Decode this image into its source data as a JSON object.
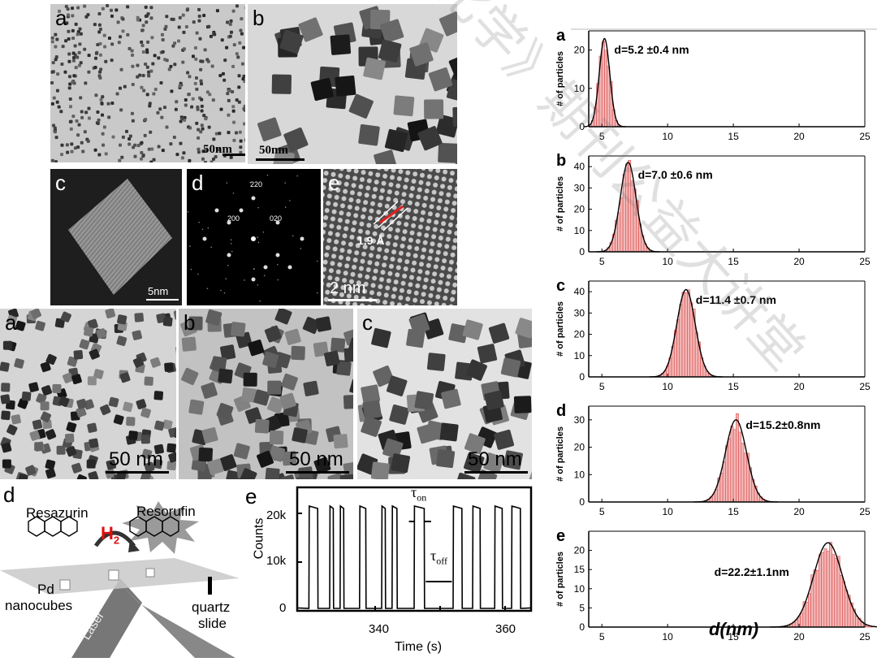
{
  "tem_panels": {
    "a": {
      "label": "a",
      "scale": "50nm"
    },
    "b": {
      "label": "b",
      "scale": "50nm"
    },
    "c": {
      "label": "c",
      "scale": "5nm"
    },
    "d": {
      "label": "d",
      "spots": [
        "220",
        "200",
        "020"
      ]
    },
    "e": {
      "label": "e",
      "spacing": "1.9 Å",
      "scale": "2 nm"
    }
  },
  "mid_panels": [
    {
      "label": "a",
      "scale": "50 nm"
    },
    {
      "label": "b",
      "scale": "50 nm"
    },
    {
      "label": "c",
      "scale": "50 nm"
    }
  ],
  "scheme": {
    "label": "d",
    "reactant": "Resazurin",
    "product": "Resorufin",
    "gas": "H",
    "gas_sub": "2",
    "catalyst": "Pd",
    "catalyst2": "nanocubes",
    "laser": "Laser",
    "substrate": "quartz",
    "substrate2": "slide"
  },
  "trace": {
    "label": "e",
    "ylabel": "Counts",
    "xlabel": "Time (s)",
    "yticks": [
      "20k",
      "10k",
      "0"
    ],
    "xticks": [
      "340",
      "360"
    ],
    "tau_on": "τ",
    "tau_on_sub": "on",
    "tau_off": "τ",
    "tau_off_sub": "off"
  },
  "histograms": {
    "xlabel": "d(nm)",
    "ylabel": "# of particles",
    "xticks": [
      "5",
      "10",
      "15",
      "20",
      "25"
    ],
    "panels": [
      {
        "label": "a",
        "text": "d=5.2 ±0.4 nm",
        "mean": 5.2,
        "sd": 0.4,
        "peak": 23,
        "yticks": [
          0,
          10,
          20
        ],
        "ymax": 25,
        "xstart": 4
      },
      {
        "label": "b",
        "text": "d=7.0 ±0.6 nm",
        "mean": 7.0,
        "sd": 0.6,
        "peak": 42,
        "yticks": [
          0,
          10,
          20,
          30,
          40
        ],
        "ymax": 45,
        "xstart": 4
      },
      {
        "label": "c",
        "text": "d=11.4 ±0.7 nm",
        "mean": 11.4,
        "sd": 0.7,
        "peak": 41,
        "yticks": [
          0,
          10,
          20,
          30,
          40
        ],
        "ymax": 45,
        "xstart": 3.5
      },
      {
        "label": "d",
        "text": "d=15.2±0.8nm",
        "mean": 15.2,
        "sd": 0.8,
        "peak": 30,
        "yticks": [
          0,
          10,
          20,
          30
        ],
        "ymax": 35,
        "xstart": 3.5
      },
      {
        "label": "e",
        "text": "d=22.2±1.1nm",
        "mean": 22.2,
        "sd": 1.1,
        "peak": 22,
        "yticks": [
          0,
          5,
          10,
          15,
          20
        ],
        "ymax": 25,
        "xstart": 3.5
      }
    ]
  },
  "colors": {
    "hist_fill": "#f3b6b6",
    "hist_edge": "#d84a4a",
    "fit": "#000000"
  }
}
